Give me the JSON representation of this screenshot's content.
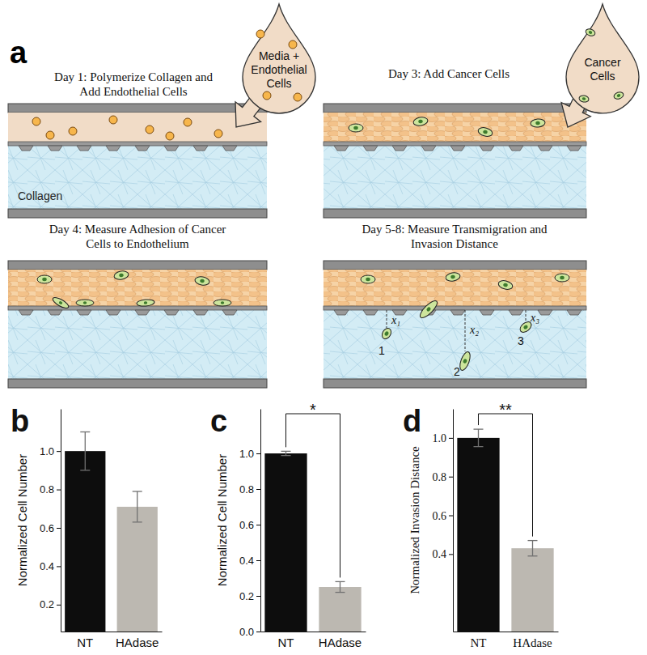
{
  "chart_data": [
    {
      "type": "bar",
      "label": "b",
      "y_label": "Normalized Cell Number",
      "categories": [
        "NT",
        "HAdase"
      ],
      "values": [
        1.0,
        0.71
      ],
      "errors": [
        0.1,
        0.08
      ],
      "colors": [
        "#0d0d0d",
        "#bcb8b1"
      ],
      "ylim": [
        0.06,
        1.22
      ],
      "yticks": [
        0.2,
        0.4,
        0.6,
        0.8,
        {
          "value": 1,
          "label": "1.0"
        }
      ],
      "grid": false
    },
    {
      "type": "bar",
      "label": "c",
      "y_label": "Normalized Cell Number",
      "categories": [
        "NT",
        "HAdase"
      ],
      "values": [
        1.0,
        0.25
      ],
      "errors": [
        0.012,
        0.03
      ],
      "colors": [
        "#0d0d0d",
        "#bcb8b1"
      ],
      "ylim": [
        0,
        1.25
      ],
      "yticks": [
        {
          "value": 0,
          "label": "0.0"
        },
        0.2,
        0.4,
        0.6,
        0.8,
        {
          "value": 1,
          "label": "1.0"
        }
      ],
      "grid": false,
      "annotations": [
        "*"
      ]
    },
    {
      "type": "bar",
      "label": "d",
      "y_label": "Normalized Invasion Distance",
      "categories": [
        "NT",
        "HAdase"
      ],
      "values": [
        1.0,
        0.43
      ],
      "errors": [
        0.045,
        0.04
      ],
      "colors": [
        "#0d0d0d",
        "#bcb8b1"
      ],
      "ylim": [
        0,
        1.15
      ],
      "yticks": [
        0.4,
        0.6,
        0.8,
        {
          "value": 1,
          "label": "1.0"
        }
      ],
      "grid": false,
      "annotations": [
        "**"
      ]
    }
  ],
  "diagram": {
    "label": "a",
    "panels": [
      {
        "title": [
          "Day 1: Polymerize Collagen and",
          "Add Endothelial Cells"
        ]
      },
      {
        "title": [
          "Day 3: Add Cancer Cells"
        ]
      },
      {
        "title": [
          "Day 4: Measure Adhesion of Cancer",
          "Cells to Endothelium"
        ]
      },
      {
        "title": [
          "Day 5-8: Measure Transmigration and",
          "Invasion Distance"
        ]
      }
    ],
    "droplets": [
      [
        "Media +",
        "Endothelial",
        "Cells"
      ],
      [
        "Cancer",
        "Cells"
      ]
    ],
    "collagen_label": "Collagen",
    "distance_labels": [
      "x₁",
      "x₂",
      "x₃"
    ],
    "cell_labels": [
      "1",
      "2",
      "3"
    ]
  }
}
